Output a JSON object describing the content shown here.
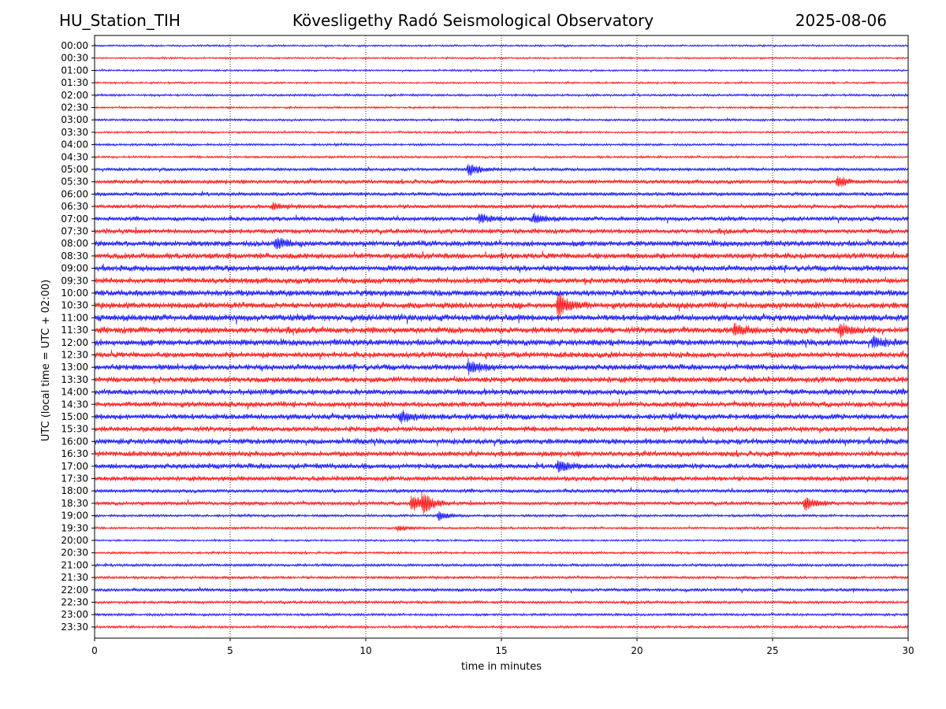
{
  "header": {
    "station": "HU_Station_TIH",
    "title": "Kövesligethy Radó Seismological Observatory",
    "date": "2025-08-06"
  },
  "chart_data": {
    "type": "line",
    "title": "Kövesligethy Radó Seismological Observatory",
    "xlabel": "time in minutes",
    "ylabel": "UTC (local time = UTC + 02:00)",
    "xlim": [
      0,
      30
    ],
    "x_ticks": [
      0,
      5,
      10,
      15,
      20,
      25,
      30
    ],
    "grid": "vertical dotted lines at x ticks",
    "trace_colors": [
      "#0000ff",
      "#ff0000"
    ],
    "row_labels": [
      "00:00",
      "00:30",
      "01:00",
      "01:30",
      "02:00",
      "02:30",
      "03:00",
      "03:30",
      "04:00",
      "04:30",
      "05:00",
      "05:30",
      "06:00",
      "06:30",
      "07:00",
      "07:30",
      "08:00",
      "08:30",
      "09:00",
      "09:30",
      "10:00",
      "10:30",
      "11:00",
      "11:30",
      "12:00",
      "12:30",
      "13:00",
      "13:30",
      "14:00",
      "14:30",
      "15:00",
      "15:30",
      "16:00",
      "16:30",
      "17:00",
      "17:30",
      "18:00",
      "18:30",
      "19:00",
      "19:30",
      "20:00",
      "20:30",
      "21:00",
      "21:30",
      "22:00",
      "22:30",
      "23:00",
      "23:30"
    ],
    "noise_levels": [
      1.5,
      1.5,
      1.5,
      1.5,
      1.8,
      1.6,
      1.8,
      1.6,
      1.8,
      1.8,
      2.5,
      3.2,
      3.0,
      3.2,
      3.5,
      3.8,
      4.5,
      4.5,
      4.5,
      4.5,
      4.8,
      4.8,
      5.0,
      5.0,
      5.0,
      4.5,
      4.5,
      4.5,
      4.5,
      4.2,
      4.5,
      4.2,
      4.5,
      4.2,
      4.2,
      3.8,
      3.0,
      3.0,
      2.0,
      1.8,
      1.5,
      1.8,
      2.2,
      2.2,
      2.5,
      2.2,
      2.0,
      2.0
    ],
    "events": [
      {
        "row": "05:00",
        "x": 13.8,
        "amplitude": 8
      },
      {
        "row": "05:30",
        "x": 27.4,
        "amplitude": 6
      },
      {
        "row": "06:30",
        "x": 6.6,
        "amplitude": 4
      },
      {
        "row": "07:00",
        "x": 14.2,
        "amplitude": 6
      },
      {
        "row": "07:00",
        "x": 16.2,
        "amplitude": 6
      },
      {
        "row": "08:00",
        "x": 6.7,
        "amplitude": 7
      },
      {
        "row": "10:30",
        "x": 17.1,
        "amplitude": 15
      },
      {
        "row": "11:30",
        "x": 23.6,
        "amplitude": 7
      },
      {
        "row": "11:30",
        "x": 27.5,
        "amplitude": 7
      },
      {
        "row": "12:00",
        "x": 28.7,
        "amplitude": 6
      },
      {
        "row": "13:00",
        "x": 13.8,
        "amplitude": 10
      },
      {
        "row": "15:00",
        "x": 11.3,
        "amplitude": 6
      },
      {
        "row": "17:00",
        "x": 17.1,
        "amplitude": 7
      },
      {
        "row": "18:30",
        "x": 11.7,
        "amplitude": 10
      },
      {
        "row": "18:30",
        "x": 12.1,
        "amplitude": 11
      },
      {
        "row": "18:30",
        "x": 26.2,
        "amplitude": 8
      },
      {
        "row": "19:00",
        "x": 12.7,
        "amplitude": 6
      },
      {
        "row": "19:30",
        "x": 11.2,
        "amplitude": 4
      }
    ]
  }
}
